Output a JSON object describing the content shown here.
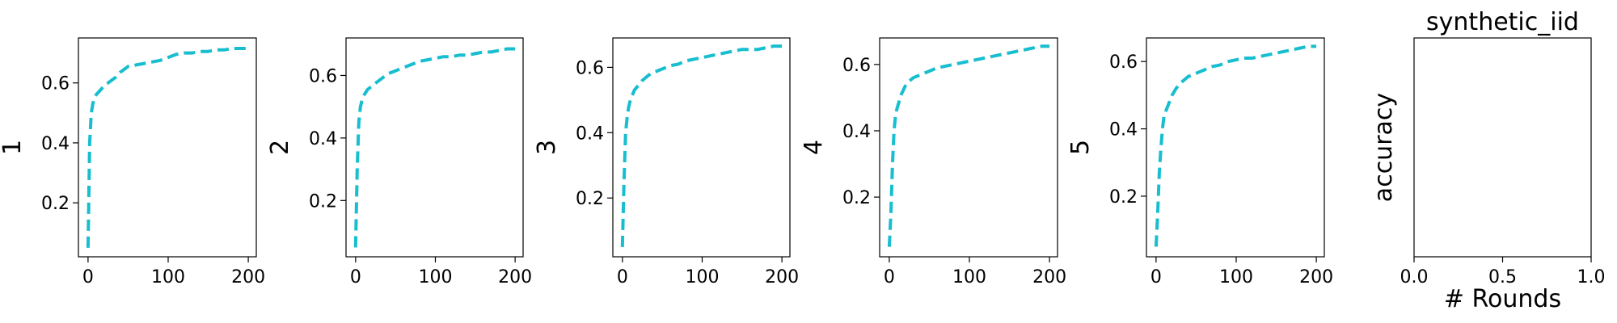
{
  "accent_color": "#17becf",
  "chart_data": [
    {
      "type": "line",
      "ylabel": "1",
      "xlim": [
        -12,
        210
      ],
      "ylim": [
        0.02,
        0.75
      ],
      "xticks": [
        "0",
        "100",
        "200"
      ],
      "yticks": [
        "0.2",
        "0.4",
        "0.6"
      ],
      "series": [
        {
          "x": [
            0,
            2,
            4,
            6,
            8,
            10,
            15,
            20,
            25,
            30,
            35,
            40,
            45,
            50,
            55,
            60,
            70,
            80,
            90,
            100,
            110,
            120,
            130,
            140,
            150,
            160,
            170,
            180,
            190,
            200
          ],
          "y": [
            0.05,
            0.4,
            0.5,
            0.53,
            0.55,
            0.56,
            0.575,
            0.59,
            0.6,
            0.61,
            0.62,
            0.635,
            0.645,
            0.655,
            0.655,
            0.66,
            0.665,
            0.67,
            0.675,
            0.685,
            0.695,
            0.7,
            0.7,
            0.705,
            0.705,
            0.71,
            0.71,
            0.715,
            0.715,
            0.715
          ]
        }
      ]
    },
    {
      "type": "line",
      "ylabel": "2",
      "xlim": [
        -12,
        210
      ],
      "ylim": [
        0.02,
        0.72
      ],
      "xticks": [
        "0",
        "100",
        "200"
      ],
      "yticks": [
        "0.2",
        "0.4",
        "0.6"
      ],
      "series": [
        {
          "x": [
            0,
            2,
            4,
            6,
            8,
            10,
            15,
            20,
            25,
            30,
            35,
            40,
            45,
            50,
            55,
            60,
            70,
            80,
            90,
            100,
            110,
            120,
            130,
            140,
            150,
            160,
            170,
            180,
            190,
            200
          ],
          "y": [
            0.05,
            0.3,
            0.45,
            0.5,
            0.52,
            0.535,
            0.555,
            0.565,
            0.575,
            0.585,
            0.595,
            0.605,
            0.61,
            0.615,
            0.62,
            0.625,
            0.635,
            0.645,
            0.65,
            0.655,
            0.66,
            0.66,
            0.665,
            0.665,
            0.67,
            0.675,
            0.675,
            0.68,
            0.685,
            0.685
          ]
        }
      ]
    },
    {
      "type": "line",
      "ylabel": "3",
      "xlim": [
        -12,
        210
      ],
      "ylim": [
        0.02,
        0.69
      ],
      "xticks": [
        "0",
        "100",
        "200"
      ],
      "yticks": [
        "0.2",
        "0.4",
        "0.6"
      ],
      "series": [
        {
          "x": [
            0,
            2,
            4,
            6,
            8,
            10,
            15,
            20,
            25,
            30,
            35,
            40,
            45,
            50,
            55,
            60,
            70,
            80,
            90,
            100,
            110,
            120,
            130,
            140,
            150,
            160,
            170,
            180,
            190,
            200
          ],
          "y": [
            0.05,
            0.25,
            0.4,
            0.45,
            0.48,
            0.5,
            0.53,
            0.545,
            0.56,
            0.57,
            0.58,
            0.585,
            0.59,
            0.595,
            0.6,
            0.605,
            0.61,
            0.62,
            0.625,
            0.63,
            0.635,
            0.64,
            0.645,
            0.65,
            0.655,
            0.655,
            0.655,
            0.66,
            0.665,
            0.665
          ]
        }
      ]
    },
    {
      "type": "line",
      "ylabel": "4",
      "xlim": [
        -12,
        210
      ],
      "ylim": [
        0.02,
        0.68
      ],
      "xticks": [
        "0",
        "100",
        "200"
      ],
      "yticks": [
        "0.2",
        "0.4",
        "0.6"
      ],
      "series": [
        {
          "x": [
            0,
            2,
            4,
            6,
            8,
            10,
            15,
            20,
            25,
            30,
            35,
            40,
            45,
            50,
            55,
            60,
            70,
            80,
            90,
            100,
            110,
            120,
            130,
            140,
            150,
            160,
            170,
            180,
            190,
            200
          ],
          "y": [
            0.05,
            0.15,
            0.3,
            0.4,
            0.45,
            0.47,
            0.51,
            0.535,
            0.55,
            0.56,
            0.565,
            0.57,
            0.575,
            0.58,
            0.585,
            0.59,
            0.595,
            0.6,
            0.605,
            0.61,
            0.615,
            0.62,
            0.625,
            0.63,
            0.635,
            0.64,
            0.645,
            0.65,
            0.655,
            0.655
          ]
        }
      ]
    },
    {
      "type": "line",
      "ylabel": "5",
      "xlim": [
        -12,
        210
      ],
      "ylim": [
        0.02,
        0.67
      ],
      "xticks": [
        "0",
        "100",
        "200"
      ],
      "yticks": [
        "0.2",
        "0.4",
        "0.6"
      ],
      "series": [
        {
          "x": [
            0,
            2,
            4,
            6,
            8,
            10,
            15,
            20,
            25,
            30,
            35,
            40,
            45,
            50,
            55,
            60,
            70,
            80,
            90,
            100,
            110,
            120,
            130,
            140,
            150,
            160,
            170,
            180,
            190,
            200
          ],
          "y": [
            0.05,
            0.15,
            0.27,
            0.34,
            0.4,
            0.44,
            0.47,
            0.5,
            0.52,
            0.535,
            0.545,
            0.555,
            0.56,
            0.565,
            0.57,
            0.575,
            0.585,
            0.59,
            0.6,
            0.605,
            0.61,
            0.61,
            0.615,
            0.62,
            0.625,
            0.63,
            0.635,
            0.64,
            0.645,
            0.645
          ]
        }
      ]
    },
    {
      "type": "line",
      "title": "synthetic_iid",
      "ylabel": "accuracy",
      "xlabel": "# Rounds",
      "xlim": [
        0,
        1
      ],
      "ylim": [
        0,
        1
      ],
      "xticks": [
        "0.0",
        "0.5",
        "1.0"
      ],
      "yticks": [],
      "series": []
    }
  ]
}
